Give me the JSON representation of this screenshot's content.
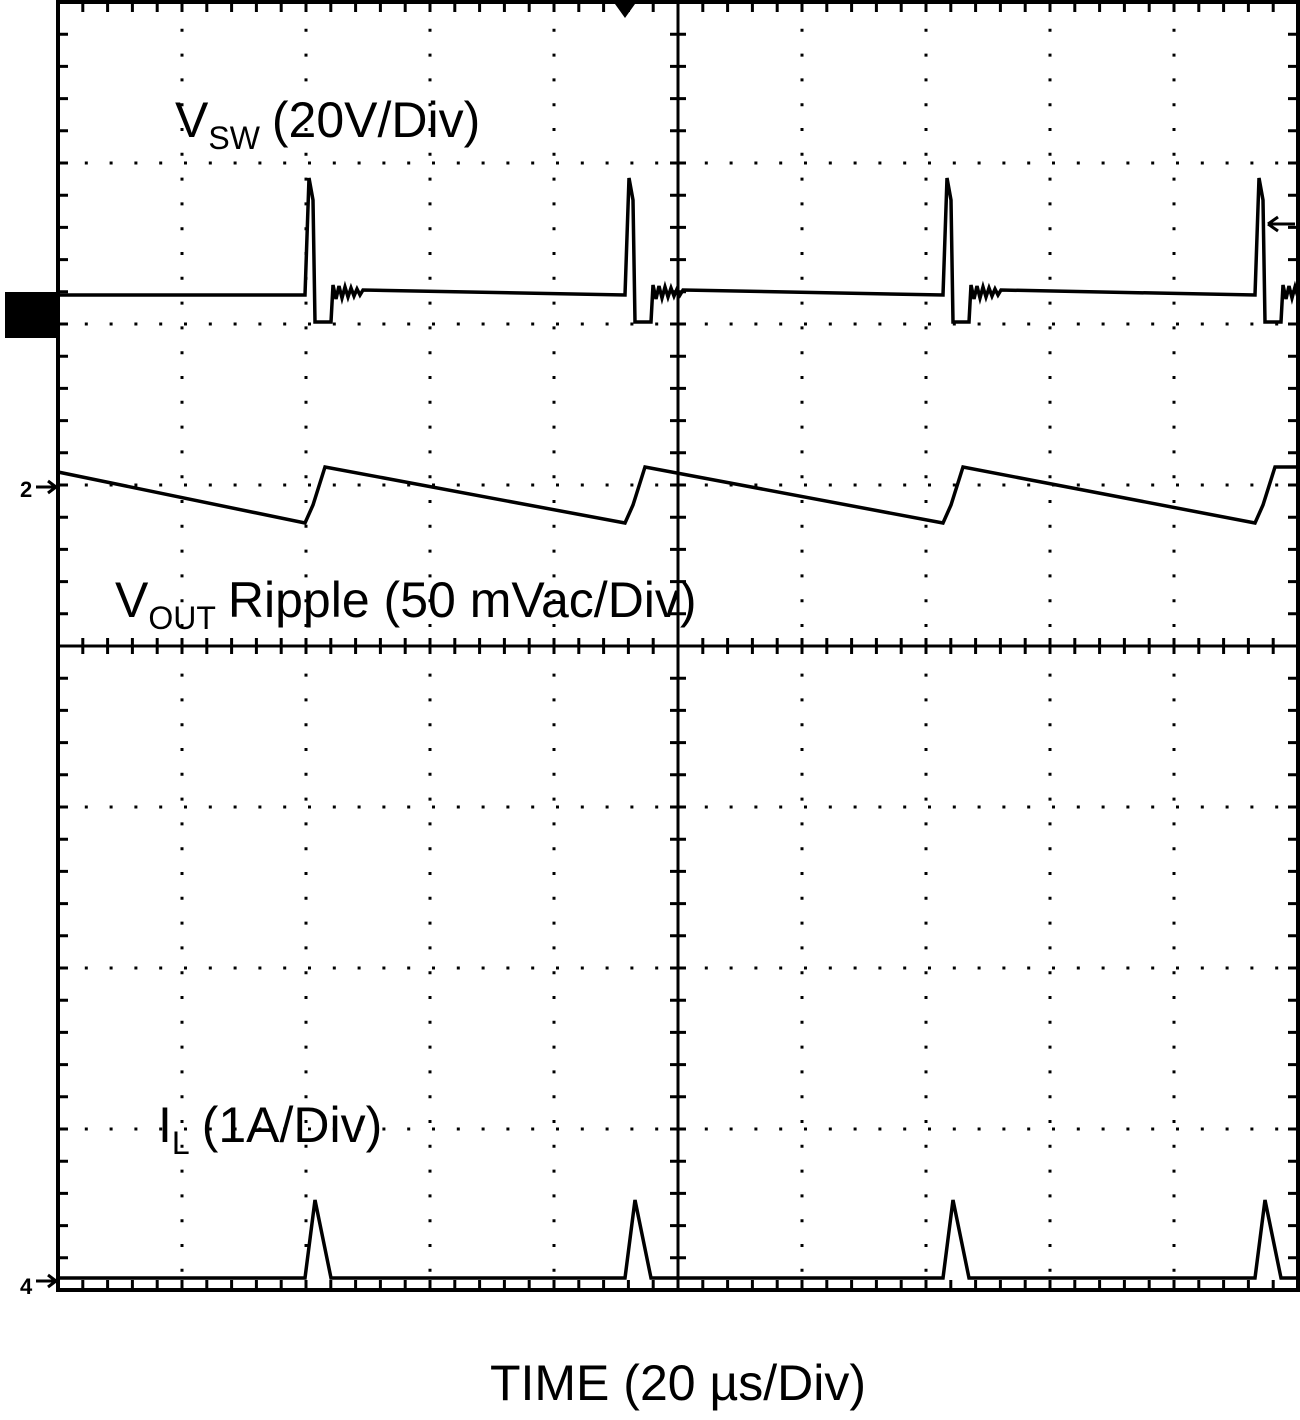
{
  "traces": {
    "vsw": {
      "symbol": "V",
      "subscript": "SW",
      "scale": "(20V/Div)"
    },
    "vout": {
      "symbol": "V",
      "subscript": "OUT",
      "scale": "Ripple (50 mVac/Div)"
    },
    "il": {
      "symbol": "I",
      "subscript": "L",
      "scale": "(1A/Div)"
    }
  },
  "time_label": "TIME (20 µs/Div)",
  "channel_markers": [
    "2",
    "4"
  ]
}
